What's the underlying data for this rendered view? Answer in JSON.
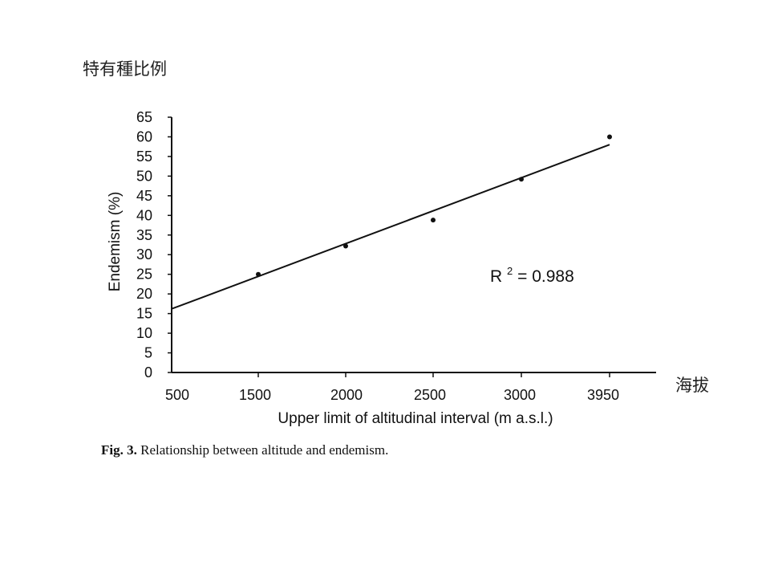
{
  "annotations": {
    "y_note": "特有種比例",
    "x_note": "海拔"
  },
  "caption": {
    "label": "Fig. 3.",
    "text": " Relationship between altitude and endemism."
  },
  "chart_data": {
    "type": "scatter",
    "xlabel": "Upper limit of altitudinal interval (m a.s.l.)",
    "ylabel": "Endemism (%)",
    "x_categories": [
      "500",
      "1500",
      "2000",
      "2500",
      "3000",
      "3950"
    ],
    "ylim": [
      0,
      65
    ],
    "yticks": [
      0,
      5,
      10,
      15,
      20,
      25,
      30,
      35,
      40,
      45,
      50,
      55,
      60,
      65
    ],
    "points": [
      {
        "x": "1500",
        "y": 25
      },
      {
        "x": "2000",
        "y": 32.2
      },
      {
        "x": "2500",
        "y": 38.8
      },
      {
        "x": "3000",
        "y": 49.2
      },
      {
        "x": "3950",
        "y": 60
      }
    ],
    "trendline": {
      "start": {
        "x": "500",
        "y": 16.2
      },
      "end": {
        "x": "3950",
        "y": 58
      }
    },
    "r2_label": "R",
    "r2_sup": "2",
    "r2_value": " = 0.988",
    "grid": false,
    "colors": {
      "marks": "#111111",
      "background": "#ffffff"
    }
  }
}
